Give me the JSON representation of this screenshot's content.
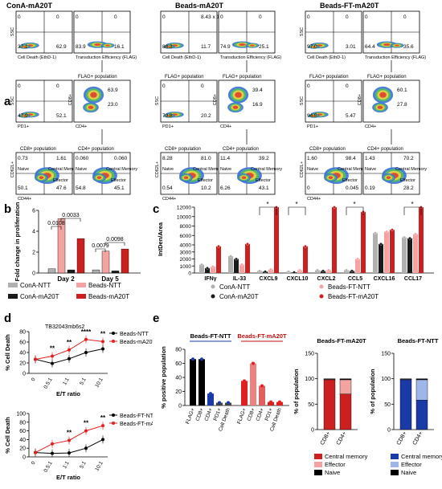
{
  "panel_letters": [
    "a",
    "b",
    "c",
    "d",
    "e"
  ],
  "panel_a": {
    "headers": [
      "ConA-mA20T",
      "Beads-mA20T",
      "Beads-FT-mA20T"
    ],
    "blocks": [
      {
        "name": "conA",
        "row1": [
          {
            "label": "SSC / Cell Death (EthD-1)",
            "xlabel": "Cell Death (EthD-1)",
            "ylabel": "SSC",
            "q": [
              "0",
              "0",
              "37.1",
              "62.9"
            ]
          },
          {
            "label": "Transduction Efficiency (FLAG)",
            "xlabel": "Transduction Efficiency (FLAG)",
            "ylabel": "",
            "q": [
              "0",
              "0",
              "83.9",
              "16.1"
            ]
          }
        ],
        "row2_titles": [
          "",
          "FLAG+ population"
        ],
        "row2": [
          {
            "xlabel": "PD1+",
            "ylabel": "SSC",
            "q": [
              "0",
              "0",
              "47.9",
              "52.1"
            ]
          },
          {
            "xlabel": "CD4+",
            "ylabel": "CD8+",
            "q": [
              "",
              "",
              "",
              ""
            ],
            "vals": [
              "63.9",
              "23.0"
            ]
          }
        ],
        "row3_titles": [
          "CD8+ population",
          "CD4+ population"
        ],
        "row3": [
          {
            "xlabel": "CD44+",
            "ylabel": "CD62L+",
            "q": [
              "0.73",
              "1.61",
              "50.1",
              "47.6"
            ],
            "names": [
              "Naive",
              "Central Memory",
              "",
              "Effector"
            ]
          },
          {
            "xlabel": "",
            "ylabel": "",
            "q": [
              "0.060",
              "0.060",
              "54.8",
              "45.1"
            ],
            "names": [
              "Naive",
              "Central Memory",
              "",
              "Effector"
            ]
          }
        ]
      },
      {
        "name": "beads",
        "row1": [
          {
            "xlabel": "Cell Death (EthD-1)",
            "ylabel": "",
            "q": [
              "0",
              "8.43 x 10⁻³",
              "88.3",
              "11.7"
            ]
          },
          {
            "xlabel": "Transduction Efficiency (FLAG)",
            "ylabel": "",
            "q": [
              "0",
              "0",
              "74.9",
              "25.1"
            ]
          }
        ],
        "row2_titles": [
          "FLAG+ population",
          "FLAG+ population"
        ],
        "row2": [
          {
            "xlabel": "PD1+",
            "ylabel": "SSC",
            "q": [
              "0",
              "0",
              "79.8",
              "20.2"
            ]
          },
          {
            "xlabel": "CD4+",
            "ylabel": "CD8+",
            "q": [
              "",
              "",
              "",
              ""
            ],
            "vals": [
              "39.4",
              "16.9"
            ]
          }
        ],
        "row3_titles": [
          "CD8+ population",
          "CD4+ population"
        ],
        "row3": [
          {
            "xlabel": "CD44+",
            "ylabel": "CD62L+",
            "q": [
              "8.28",
              "81.0",
              "0.54",
              "10.2"
            ],
            "names": [
              "Naive",
              "Central Memory",
              "",
              "Effector"
            ]
          },
          {
            "xlabel": "",
            "ylabel": "",
            "q": [
              "11.4",
              "39.2",
              "6.26",
              "43.1"
            ],
            "names": [
              "Naive",
              "Central Memory",
              "",
              "Effector"
            ]
          }
        ]
      },
      {
        "name": "beadsFT",
        "row1": [
          {
            "xlabel": "Cell Death (EthD-1)",
            "ylabel": "SSC",
            "q": [
              "0",
              "0",
              "97.0",
              "3.01"
            ]
          },
          {
            "xlabel": "Transduction Efficiency (FLAG)",
            "ylabel": "",
            "q": [
              "0",
              "0",
              "64.4",
              "35.6"
            ]
          }
        ],
        "row2_titles": [
          "FLAG+ population",
          "FLAG+ population"
        ],
        "row2": [
          {
            "xlabel": "PD1+",
            "ylabel": "SSC",
            "q": [
              "0",
              "0",
              "94.5",
              "5.47"
            ]
          },
          {
            "xlabel": "CD4+",
            "ylabel": "CD8+",
            "q": [
              "",
              "",
              "",
              ""
            ],
            "vals": [
              "60.1",
              "27.8"
            ]
          }
        ],
        "row3_titles": [
          "CD8+ population",
          "CD4+ population"
        ],
        "row3": [
          {
            "xlabel": "CD44+",
            "ylabel": "CD62L+",
            "q": [
              "1.60",
              "98.4",
              "0",
              "0.045"
            ],
            "names": [
              "Naive",
              "Central Memory",
              "",
              "Effector"
            ]
          },
          {
            "xlabel": "",
            "ylabel": "",
            "q": [
              "1.43",
              "70.2",
              "0.19",
              "28.2"
            ],
            "names": [
              "Naive",
              "Central Memory",
              "",
              "Effector"
            ]
          }
        ]
      }
    ]
  },
  "colors": {
    "conA_ntt": "#b0b0b0",
    "conA_ma20t": "#1a1a1a",
    "beads_ntt": "#f4a3a3",
    "beads_ma20t": "#cc1f1f",
    "blue": "#1a3aa8",
    "light_blue": "#9fb6e8"
  },
  "chart_data": [
    {
      "panel": "b",
      "type": "bar",
      "ylabel": "Fold change in proliferation",
      "categories": [
        "Day 2",
        "Day 5"
      ],
      "ylim": [
        0,
        6
      ],
      "yticks": [
        "0",
        "2",
        "4",
        "6"
      ],
      "series": [
        {
          "name": "ConA-NTT",
          "values": [
            0.4,
            0.3
          ]
        },
        {
          "name": "Beads-NTT",
          "values": [
            5.2,
            2.1
          ]
        },
        {
          "name": "ConA-mA20T",
          "values": [
            0.3,
            0.2
          ]
        },
        {
          "name": "Beads-mA20T",
          "values": [
            3.3,
            2.3
          ]
        }
      ],
      "pvalues": [
        "0.0108",
        "0.0033",
        "0.0079",
        "0.0098"
      ]
    },
    {
      "panel": "c",
      "type": "bar",
      "ylabel": "IntDen/Area",
      "categories": [
        "IFNγ",
        "IL-33",
        "CXCL9",
        "CXCL10",
        "CXCL2",
        "CCL5",
        "CXCL16",
        "CCL17"
      ],
      "yticks": [
        "0",
        "1000",
        "2000",
        "3000",
        "4000",
        "6000",
        "8000",
        "10000",
        "12000"
      ],
      "series": [
        {
          "name": "ConA-NTT",
          "values": [
            1200,
            2400,
            300,
            200,
            400,
            400,
            6500,
            5600
          ]
        },
        {
          "name": "ConA-mA20T",
          "values": [
            700,
            2000,
            200,
            100,
            300,
            300,
            4200,
            5400
          ]
        },
        {
          "name": "Beads-FT-NTT",
          "values": [
            900,
            1200,
            500,
            400,
            400,
            2000,
            6800,
            6300
          ]
        },
        {
          "name": "Beads-FT-mA20T",
          "values": [
            3800,
            4200,
            12000,
            3800,
            12000,
            11000,
            7200,
            12000
          ]
        }
      ],
      "sig": [
        "*",
        "*",
        "*",
        "*"
      ]
    },
    {
      "panel": "d-top",
      "type": "line",
      "title": "TB32043mb6s2",
      "xlabel": "E/T ratio",
      "ylabel": "% Cell Death",
      "categories": [
        "0",
        "0.5:1",
        "1:1",
        "5:1",
        "10:1"
      ],
      "ylim": [
        0,
        80
      ],
      "yticks": [
        "0",
        "20",
        "40",
        "60",
        "80"
      ],
      "series": [
        {
          "name": "Beads-NTT",
          "values": [
            27,
            19,
            28,
            40,
            47
          ]
        },
        {
          "name": "Beads-mA20T",
          "values": [
            27,
            33,
            45,
            65,
            61
          ]
        }
      ],
      "sig": [
        "**",
        "**",
        "****",
        "**"
      ]
    },
    {
      "panel": "d-bottom",
      "type": "line",
      "xlabel": "E/T ratio",
      "ylabel": "% Cell Death",
      "categories": [
        "0",
        "0.5:1",
        "1:1",
        "5:1",
        "10:1"
      ],
      "ylim": [
        0,
        100
      ],
      "yticks": [
        "0",
        "20",
        "40",
        "60",
        "80",
        "100"
      ],
      "series": [
        {
          "name": "Beads-FT-NTT",
          "values": [
            10,
            8,
            9,
            20,
            40
          ]
        },
        {
          "name": "Beads-FT-mA20T",
          "values": [
            10,
            30,
            38,
            60,
            72
          ]
        }
      ],
      "sig": [
        "**",
        "**",
        "**"
      ]
    },
    {
      "panel": "e-left",
      "type": "bar",
      "ylabel": "% positive population",
      "groups": [
        "Beads-FT-NTT",
        "Beads-FT-mA20T"
      ],
      "categories": [
        "FLAG+",
        "CD8+",
        "CD4+",
        "PD1+",
        "Cell Death"
      ],
      "ylim": [
        0,
        80
      ],
      "yticks": [
        "0",
        "20",
        "40",
        "60",
        "80"
      ],
      "series": [
        {
          "name": "Beads-FT-NTT",
          "values": [
            66,
            66,
            17,
            4,
            4
          ]
        },
        {
          "name": "Beads-FT-mA20T",
          "values": [
            35,
            60,
            28,
            5,
            5
          ]
        }
      ]
    },
    {
      "panel": "e-middle",
      "type": "bar",
      "title": "Beads-FT-mA20T",
      "ylabel": "% of population",
      "categories": [
        "CD8+",
        "CD4+"
      ],
      "ylim": [
        0,
        150
      ],
      "yticks": [
        "0",
        "50",
        "100",
        "150"
      ],
      "series": [
        {
          "name": "Central memory",
          "values": [
            98,
            70
          ]
        },
        {
          "name": "Effector",
          "values": [
            1,
            28
          ]
        },
        {
          "name": "Naive",
          "values": [
            1,
            2
          ]
        }
      ]
    },
    {
      "panel": "e-right",
      "type": "bar",
      "title": "Beads-FT-NTT",
      "ylabel": "% of population",
      "categories": [
        "CD8+",
        "CD4+"
      ],
      "ylim": [
        0,
        150
      ],
      "yticks": [
        "0",
        "50",
        "100",
        "150"
      ],
      "series": [
        {
          "name": "Central memory",
          "values": [
            98,
            58
          ]
        },
        {
          "name": "Effector",
          "values": [
            1,
            40
          ]
        },
        {
          "name": "Naive",
          "values": [
            1,
            2
          ]
        }
      ]
    }
  ]
}
